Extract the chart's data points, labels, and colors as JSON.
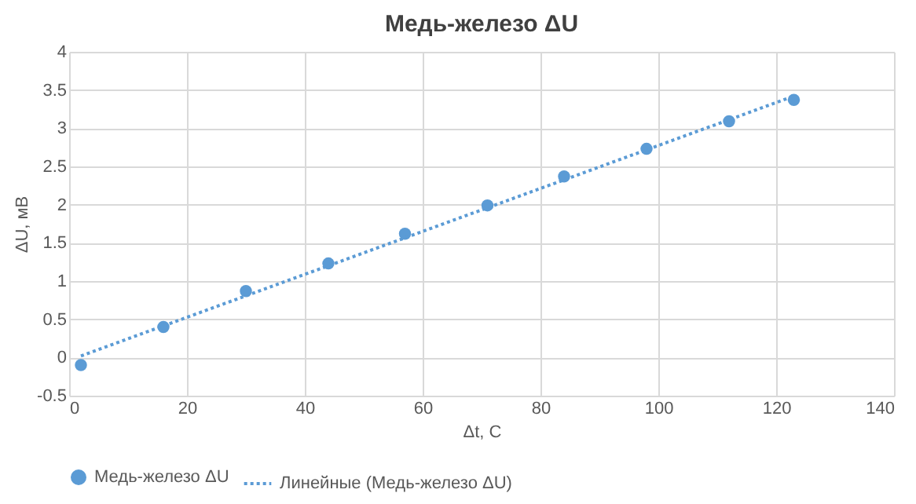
{
  "chart_data": {
    "type": "scatter",
    "title": "Медь-железо ΔU",
    "xlabel": "Δt, C",
    "ylabel": "ΔU, мВ",
    "xlim": [
      0,
      140
    ],
    "xticks": [
      0,
      20,
      40,
      60,
      80,
      100,
      120,
      140
    ],
    "ylim": [
      -0.5,
      4
    ],
    "yticks": [
      -0.5,
      0,
      0.5,
      1,
      1.5,
      2,
      2.5,
      3,
      3.5,
      4
    ],
    "grid": true,
    "legend": "bottom",
    "marker": "circle",
    "series": [
      {
        "name": "Медь-железо ΔU",
        "color": "#5b9bd5",
        "x": [
          2,
          16,
          30,
          44,
          57,
          71,
          84,
          98,
          112,
          123
        ],
        "values": [
          -0.1,
          0.4,
          0.87,
          1.23,
          1.62,
          1.99,
          2.37,
          2.73,
          3.09,
          3.37
        ]
      },
      {
        "name": "Линейные (Медь-железо ΔU)",
        "color": "#5b9bd5",
        "type": "line",
        "line_style": "dotted",
        "marker": "none",
        "x": [
          2,
          123
        ],
        "values": [
          0.02,
          3.42
        ]
      }
    ]
  }
}
